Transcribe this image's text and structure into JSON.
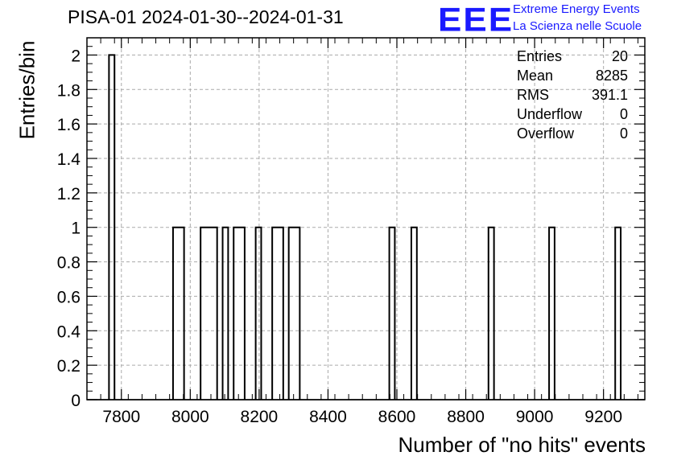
{
  "title": "PISA-01 2024-01-30--2024-01-31",
  "logo": {
    "mark": "EEE",
    "line1": "Extreme Energy Events",
    "line2": "La Scienza nelle Scuole",
    "color": "#1a1aff"
  },
  "stats": [
    {
      "label": "Entries",
      "value": "20"
    },
    {
      "label": "Mean",
      "value": "8285"
    },
    {
      "label": "RMS",
      "value": "391.1"
    },
    {
      "label": "Underflow",
      "value": "0"
    },
    {
      "label": "Overflow",
      "value": "0"
    }
  ],
  "chart_data": {
    "type": "bar",
    "title": "PISA-01 2024-01-30--2024-01-31",
    "xlabel": "Number of \"no hits\" events",
    "ylabel": "Entries/bin",
    "xlim": [
      7700,
      9320
    ],
    "ylim": [
      0,
      2.1
    ],
    "bin_width": 16,
    "x_ticks": [
      7800,
      8000,
      8200,
      8400,
      8600,
      8800,
      9000,
      9200
    ],
    "y_ticks": [
      0,
      0.2,
      0.4,
      0.6,
      0.8,
      1,
      1.2,
      1.4,
      1.6,
      1.8,
      2
    ],
    "bins": [
      {
        "x0": 7764,
        "x1": 7780,
        "value": 2
      },
      {
        "x0": 7950,
        "x1": 7982,
        "value": 1
      },
      {
        "x0": 8030,
        "x1": 8078,
        "value": 1
      },
      {
        "x0": 8094,
        "x1": 8110,
        "value": 1
      },
      {
        "x0": 8126,
        "x1": 8158,
        "value": 1
      },
      {
        "x0": 8190,
        "x1": 8206,
        "value": 1
      },
      {
        "x0": 8238,
        "x1": 8270,
        "value": 1
      },
      {
        "x0": 8286,
        "x1": 8318,
        "value": 1
      },
      {
        "x0": 8578,
        "x1": 8594,
        "value": 1
      },
      {
        "x0": 8642,
        "x1": 8658,
        "value": 1
      },
      {
        "x0": 8866,
        "x1": 8882,
        "value": 1
      },
      {
        "x0": 9042,
        "x1": 9058,
        "value": 1
      },
      {
        "x0": 9234,
        "x1": 9250,
        "value": 1
      }
    ],
    "grid": true,
    "line_color": "#000000"
  }
}
